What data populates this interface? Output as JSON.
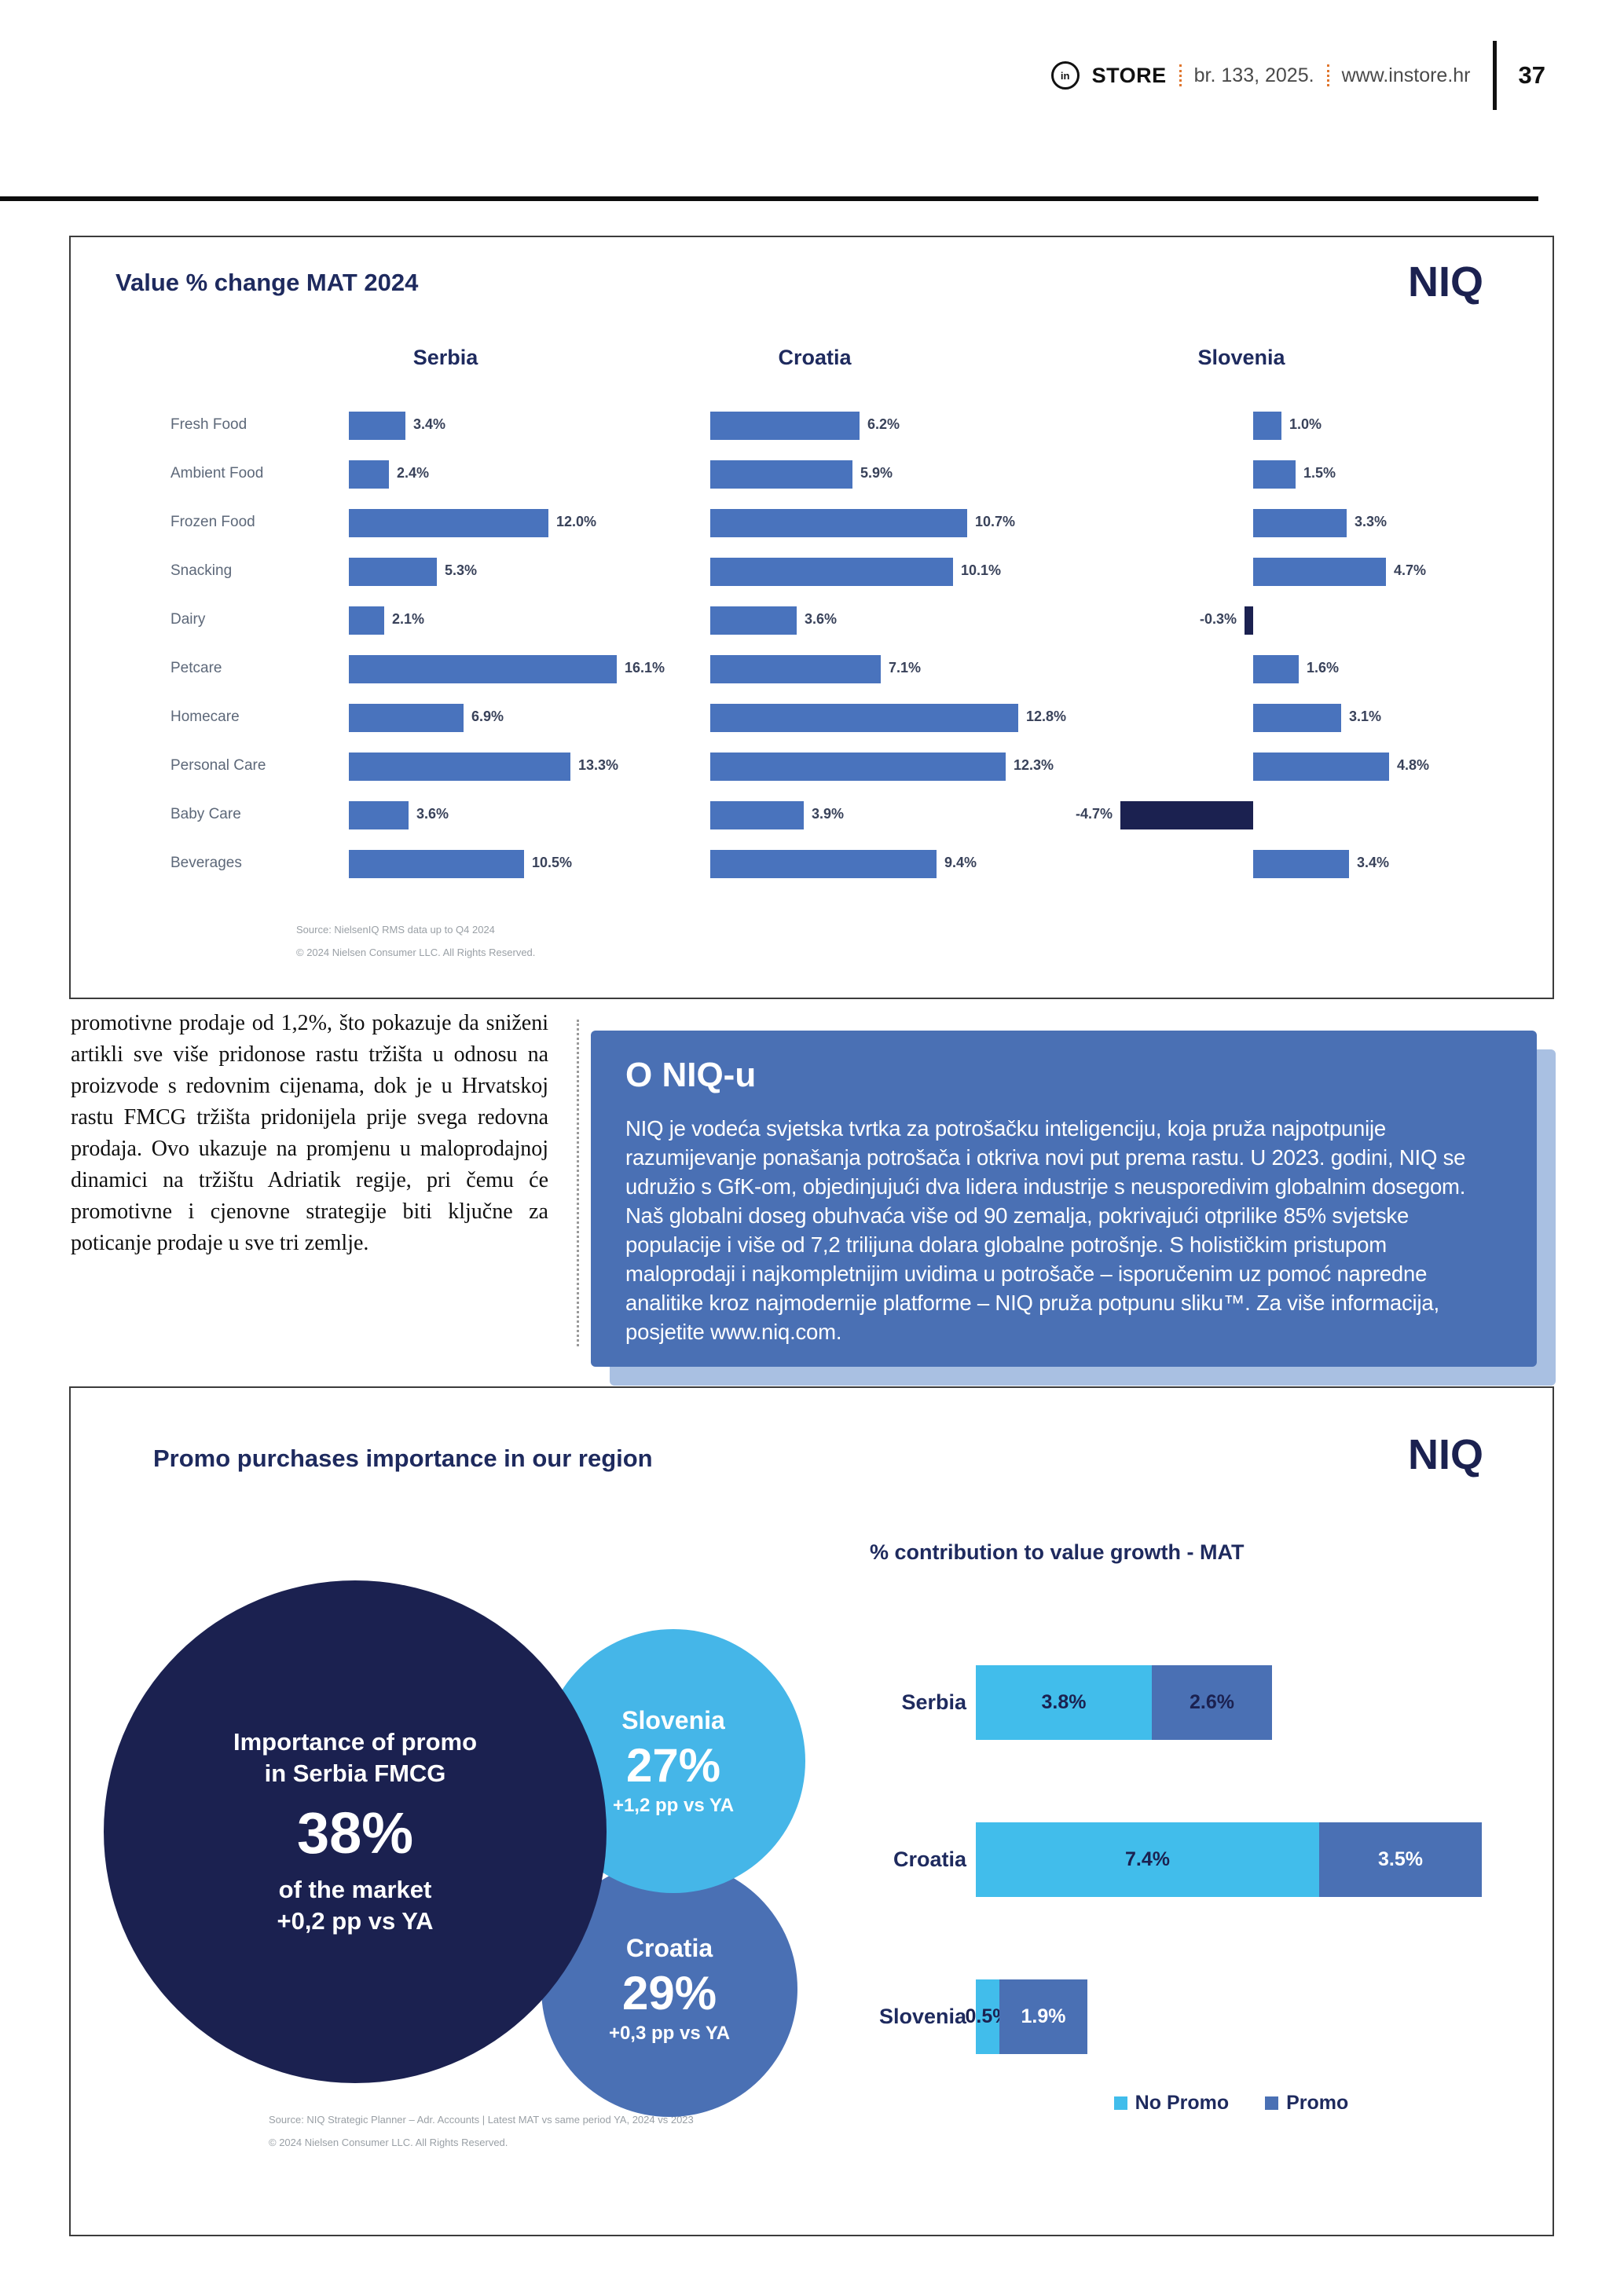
{
  "header": {
    "logo_glyph": "in",
    "brand": "STORE",
    "issue": "br. 133, 2025.",
    "site": "www.instore.hr",
    "page_number": "37"
  },
  "colors": {
    "navy": "#1b2150",
    "heading_navy": "#1e2a5e",
    "bar_blue": "#4973bd",
    "cyan": "#41bdeb",
    "promo_blue": "#4a70b4",
    "circle_blue": "#45b6e8",
    "box_blue": "#4a70b4",
    "shadow_blue": "#a9c0e2",
    "accent_orange": "#e0762e"
  },
  "value_chart": {
    "title": "Value % change MAT 2024",
    "logo": "NIQ",
    "countries": [
      "Serbia",
      "Croatia",
      "Slovenia"
    ],
    "source_line1": "Source: NielsenIQ RMS data up to Q4 2024",
    "source_line2": "© 2024 Nielsen Consumer LLC. All Rights Reserved."
  },
  "article": {
    "paragraph": "promotivne prodaje od 1,2%, što pokazuje da sniženi artikli sve više pridonose rastu tržišta u odnosu na proizvode s redovnim cijenama, dok je u Hrvatskoj rastu FMCG tržišta pridonijela prije svega redovna prodaja. Ovo ukazuje na promjenu u maloprodajnoj dinamici na tržištu Adriatik regije, pri čemu će promotivne i cjenovne strategije biti ključne za poticanje prodaje u sve tri zemlje."
  },
  "niq_box": {
    "title": "O NIQ-u",
    "body": "NIQ je vodeća svjetska tvrtka za potrošačku inteligenciju, koja pruža najpotpunije razumijevanje ponašanja potrošača i otkriva novi put prema rastu. U 2023. godini, NIQ se udružio s GfK-om, objedinjujući dva lidera industrije s neusporedivim globalnim dosegom. Naš globalni doseg obuhvaća više od 90 zemalja, pokrivajući otprilike 85% svjetske populacije i više od 7,2 trilijuna dolara globalne potrošnje. S holističkim pristupom maloprodaji i najkompletnijim uvidima u potrošače – isporučenim uz pomoć napredne analitike kroz najmodernije platforme – NIQ pruža potpunu sliku™. Za više informacija, posjetite www.niq.com."
  },
  "promo_chart": {
    "title": "Promo purchases importance in our region",
    "logo": "NIQ",
    "bubbles": [
      {
        "name": "Serbia",
        "line1": "Importance of promo",
        "line2": "in Serbia FMCG",
        "value": "38%",
        "sub": "of the market",
        "delta": "+0,2 pp vs YA"
      },
      {
        "name": "Slovenia",
        "value": "27%",
        "delta": "+1,2 pp vs YA"
      },
      {
        "name": "Croatia",
        "value": "29%",
        "delta": "+0,3 pp vs YA"
      }
    ],
    "stacked_heading": "% contribution to value growth - MAT",
    "legend": [
      "No Promo",
      "Promo"
    ],
    "source_line1": "Source: NIQ Strategic Planner – Adr. Accounts | Latest MAT vs same period YA, 2024 vs 2023",
    "source_line2": "© 2024 Nielsen Consumer LLC. All Rights Reserved."
  },
  "chart_data": [
    {
      "type": "bar",
      "orientation": "horizontal",
      "title": "Value % change MAT 2024",
      "unit": "%",
      "categories": [
        "Fresh Food",
        "Ambient Food",
        "Frozen Food",
        "Snacking",
        "Dairy",
        "Petcare",
        "Homecare",
        "Personal Care",
        "Baby Care",
        "Beverages"
      ],
      "series": [
        {
          "name": "Serbia",
          "values": [
            3.4,
            2.4,
            12.0,
            5.3,
            2.1,
            16.1,
            6.9,
            13.3,
            3.6,
            10.5
          ]
        },
        {
          "name": "Croatia",
          "values": [
            6.2,
            5.9,
            10.7,
            10.1,
            3.6,
            7.1,
            12.8,
            12.3,
            3.9,
            9.4
          ]
        },
        {
          "name": "Slovenia",
          "values": [
            1.0,
            1.5,
            3.3,
            4.7,
            -0.3,
            1.6,
            3.1,
            4.8,
            -4.7,
            3.4
          ]
        }
      ],
      "grid": false,
      "legend_position": "none",
      "notes": "three side-by-side country panels sharing category axis; negative values drawn dark navy to the left of the axis"
    },
    {
      "type": "bar",
      "subtype": "stacked-horizontal",
      "title": "% contribution to value growth - MAT",
      "unit": "%",
      "categories": [
        "Serbia",
        "Croatia",
        "Slovenia"
      ],
      "series": [
        {
          "name": "No Promo",
          "values": [
            3.8,
            7.4,
            0.5
          ]
        },
        {
          "name": "Promo",
          "values": [
            2.6,
            3.5,
            1.9
          ]
        }
      ],
      "grid": false,
      "legend_position": "bottom"
    },
    {
      "type": "bubble",
      "title": "Promo purchases importance in our region",
      "points": [
        {
          "label": "Serbia",
          "value": 38,
          "delta_pp_vs_ya": 0.2
        },
        {
          "label": "Slovenia",
          "value": 27,
          "delta_pp_vs_ya": 1.2
        },
        {
          "label": "Croatia",
          "value": 29,
          "delta_pp_vs_ya": 0.3
        }
      ]
    }
  ]
}
